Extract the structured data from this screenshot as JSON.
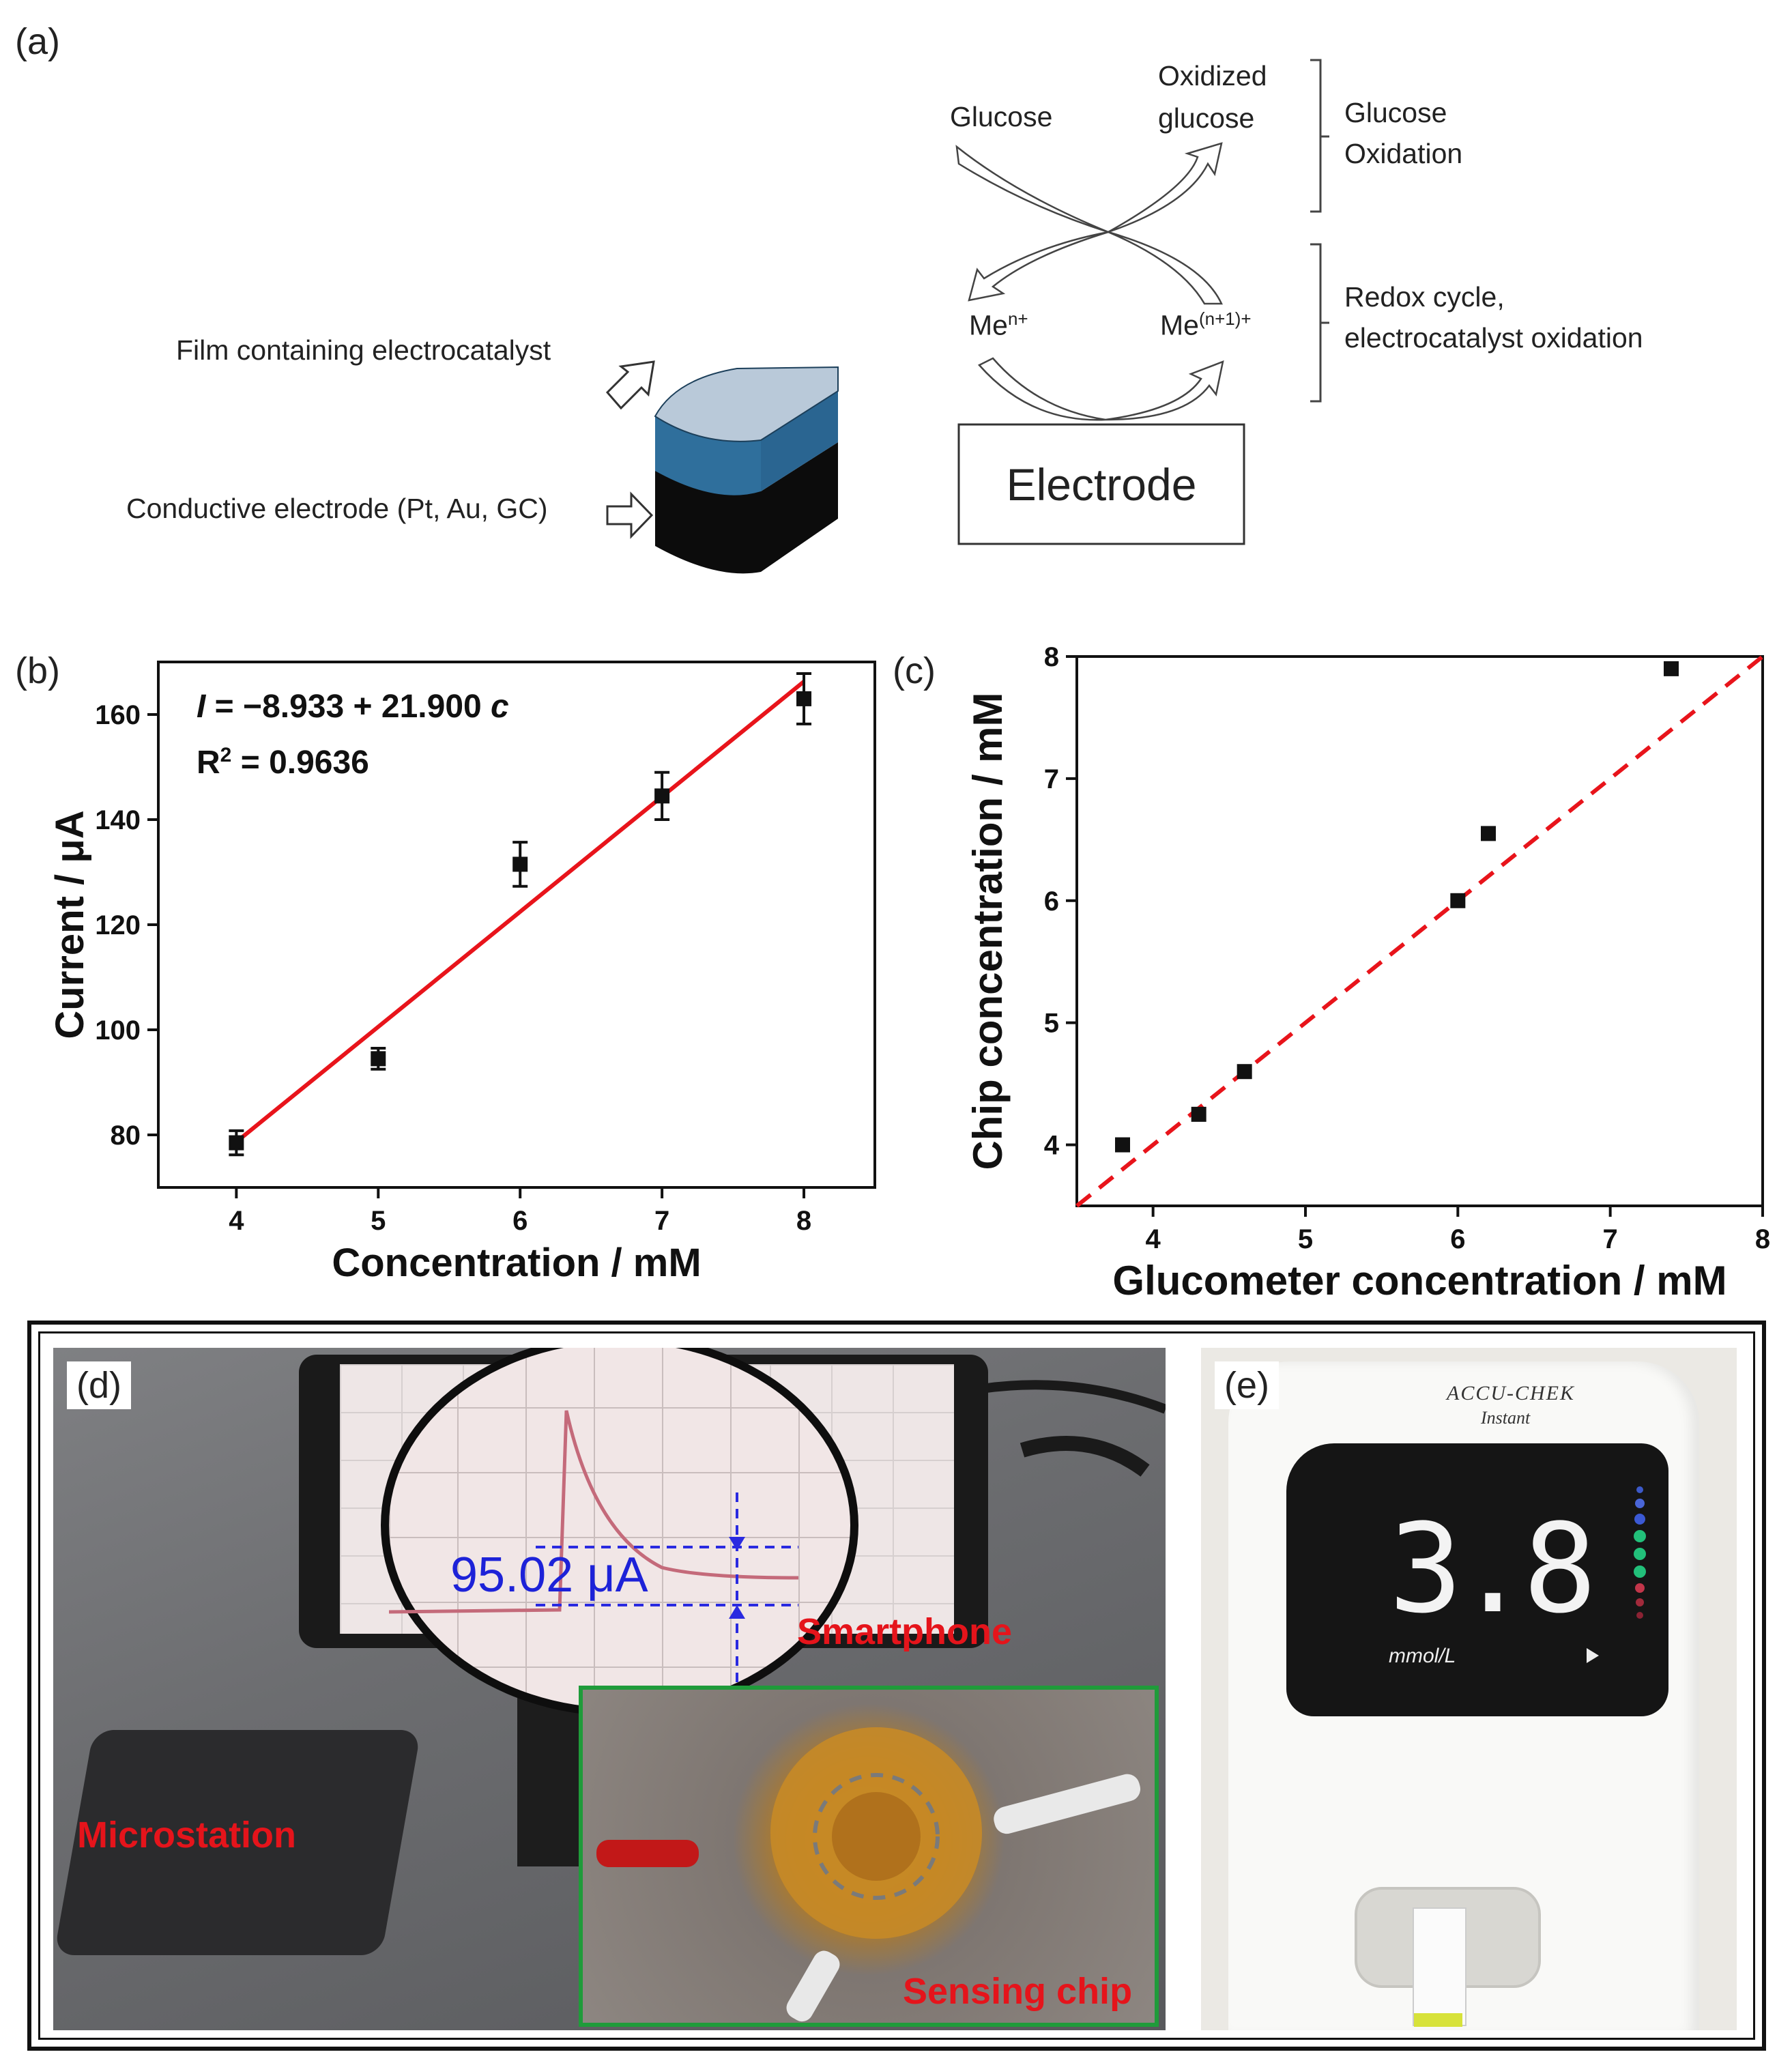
{
  "panel_a": {
    "label": "(a)",
    "film_label": "Film containing electrocatalyst",
    "electrode_label": "Conductive electrode (Pt, Au, GC)",
    "glucose": "Glucose",
    "oxidized_1": "Oxidized",
    "oxidized_2": "glucose",
    "me_n": "Me",
    "me_n_sup": "n+",
    "me_n1": "Me",
    "me_n1_sup": "(n+1)+",
    "electrode_box": "Electrode",
    "glucose_ox_1": "Glucose",
    "glucose_ox_2": "Oxidation",
    "redox_1": "Redox cycle,",
    "redox_2": "electrocatalyst oxidation",
    "colors": {
      "film_top": "#b9c9d9",
      "film_side": "#2f6f9c",
      "electrode": "#0c0c0c"
    }
  },
  "panel_b": {
    "label": "(b)",
    "eq_I": "I",
    "eq_rest": " = −8.933 + 21.900 ",
    "eq_c": "c",
    "r2_a": "R",
    "r2_sup": "2",
    "r2_b": " = 0.9636",
    "xlabel": "Concentration / mM",
    "ylabel": "Current / μA"
  },
  "panel_c": {
    "label": "(c)",
    "xlabel": "Glucometer concentration / mM",
    "ylabel": "Chip concentration / mM"
  },
  "panel_d": {
    "label": "(d)",
    "reading": "95.02 μA",
    "smartphone": "Smartphone",
    "microstation": "Microstation",
    "sensing_chip": "Sensing chip",
    "colors": {
      "annotation": "#e5141b",
      "reading": "#1d22d8",
      "inset_border": "#1f9b3a"
    }
  },
  "panel_e": {
    "label": "(e)",
    "brand": "ACCU-CHEK",
    "model": "Instant",
    "display_value": "3.8",
    "display_unit": "mmol/L"
  },
  "chart_data": [
    {
      "type": "scatter",
      "id": "b",
      "xlabel": "Concentration / mM",
      "ylabel": "Current / μA",
      "xlim": [
        3.45,
        8.5
      ],
      "ylim": [
        70,
        170
      ],
      "xticks": [
        4,
        5,
        6,
        7,
        8
      ],
      "yticks": [
        80,
        100,
        120,
        140,
        160
      ],
      "points": [
        {
          "x": 4,
          "y": 78.5,
          "err": 2.3
        },
        {
          "x": 5,
          "y": 94.5,
          "err": 2.0
        },
        {
          "x": 6,
          "y": 131.5,
          "err": 4.2
        },
        {
          "x": 7,
          "y": 144.5,
          "err": 4.5
        },
        {
          "x": 8,
          "y": 163.0,
          "err": 4.8
        }
      ],
      "fit": {
        "intercept": -8.933,
        "slope": 21.9,
        "color": "#e8141b"
      },
      "grid": false
    },
    {
      "type": "scatter",
      "id": "c",
      "xlabel": "Glucometer concentration / mM",
      "ylabel": "Chip concentration / mM",
      "xlim": [
        3.5,
        8
      ],
      "ylim": [
        3.5,
        8
      ],
      "xticks": [
        4,
        5,
        6,
        7,
        8
      ],
      "yticks": [
        4,
        5,
        6,
        7,
        8
      ],
      "points": [
        {
          "x": 3.8,
          "y": 4.0
        },
        {
          "x": 4.3,
          "y": 4.25
        },
        {
          "x": 4.6,
          "y": 4.6
        },
        {
          "x": 6.0,
          "y": 6.0
        },
        {
          "x": 6.2,
          "y": 6.55
        },
        {
          "x": 7.4,
          "y": 7.9
        }
      ],
      "reference_line": {
        "type": "y=x",
        "style": "dashed",
        "color": "#e8141b"
      },
      "grid": false
    }
  ]
}
